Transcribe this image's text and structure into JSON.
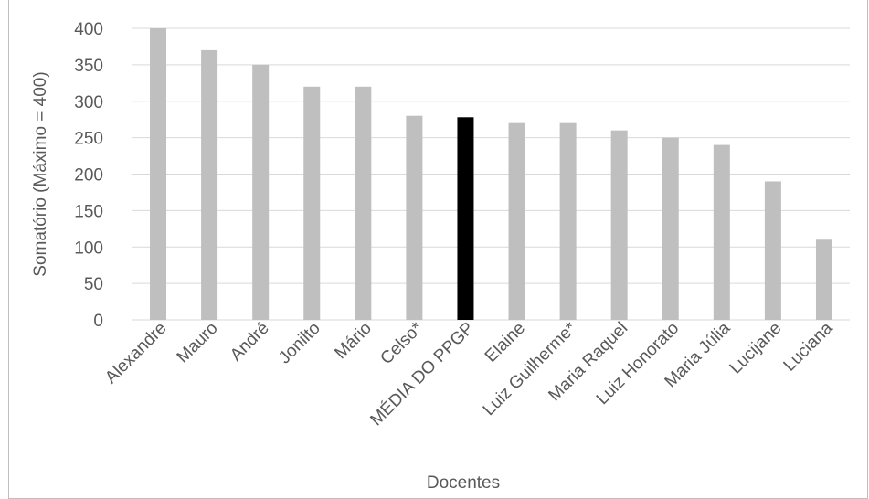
{
  "chart_data": {
    "type": "bar",
    "title": "",
    "xlabel": "Docentes",
    "ylabel": "Somatório (Máximo = 400)",
    "ylim": [
      0,
      400
    ],
    "yticks": [
      0,
      50,
      100,
      150,
      200,
      250,
      300,
      350,
      400
    ],
    "grid": true,
    "categories": [
      "Alexandre",
      "Mauro",
      "André",
      "Jonilto",
      "Mário",
      "Celso*",
      "MÉDIA DO PPGP",
      "Elaine",
      "Luiz Guilherme*",
      "Maria Raquel",
      "Luiz Honorato",
      "Maria Júlia",
      "Lucijane",
      "Luciana"
    ],
    "values": [
      400,
      370,
      350,
      320,
      320,
      280,
      278,
      270,
      270,
      260,
      250,
      240,
      190,
      110
    ],
    "highlight_category": "MÉDIA DO PPGP",
    "colors": {
      "bar": "#bfbfbf",
      "highlight": "#000000",
      "grid": "#d9d9d9",
      "axis": "#d9d9d9",
      "text": "#595959"
    }
  }
}
